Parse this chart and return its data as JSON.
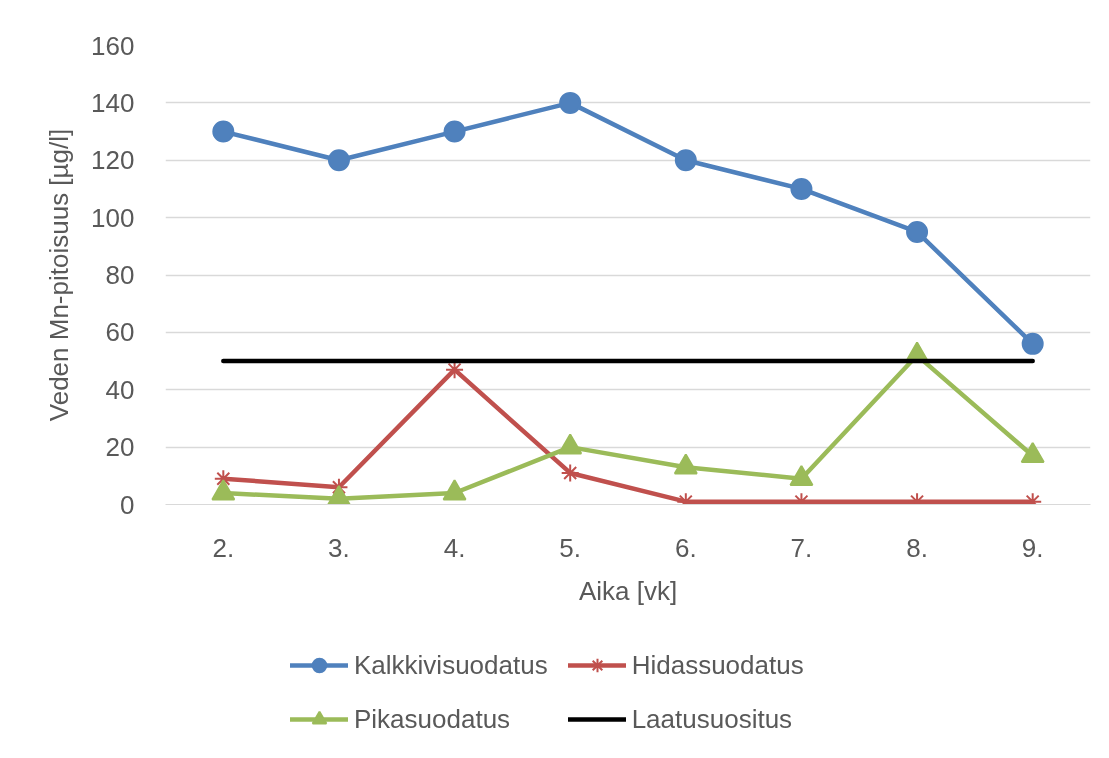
{
  "chart_data": {
    "type": "line",
    "xlabel": "Aika [vk]",
    "ylabel": "Veden Mn-pitoisuus [µg/l]",
    "categories": [
      "2.",
      "3.",
      "4.",
      "5.",
      "6.",
      "7.",
      "8.",
      "9."
    ],
    "ylim": [
      0,
      160
    ],
    "yticks": [
      0,
      20,
      40,
      60,
      80,
      100,
      120,
      140,
      160
    ],
    "grid": "y",
    "legend": "bottom",
    "line_style": "solid",
    "series": [
      {
        "name": "Kalkkivisuodatus",
        "color": "#4f81bd",
        "marker": "circle",
        "values": [
          130,
          120,
          130,
          140,
          120,
          110,
          95,
          56
        ]
      },
      {
        "name": "Hidassuodatus",
        "color": "#c0504d",
        "marker": "cross",
        "values": [
          9,
          6,
          47,
          11,
          1,
          1,
          1,
          1
        ]
      },
      {
        "name": "Pikasuodatus",
        "color": "#9bbb59",
        "marker": "triangle",
        "values": [
          4,
          2,
          4,
          20,
          13,
          9,
          52,
          17
        ]
      },
      {
        "name": "Laatusuositus",
        "color": "#000000",
        "marker": "none",
        "values": [
          50,
          50,
          50,
          50,
          50,
          50,
          50,
          50
        ]
      }
    ]
  }
}
